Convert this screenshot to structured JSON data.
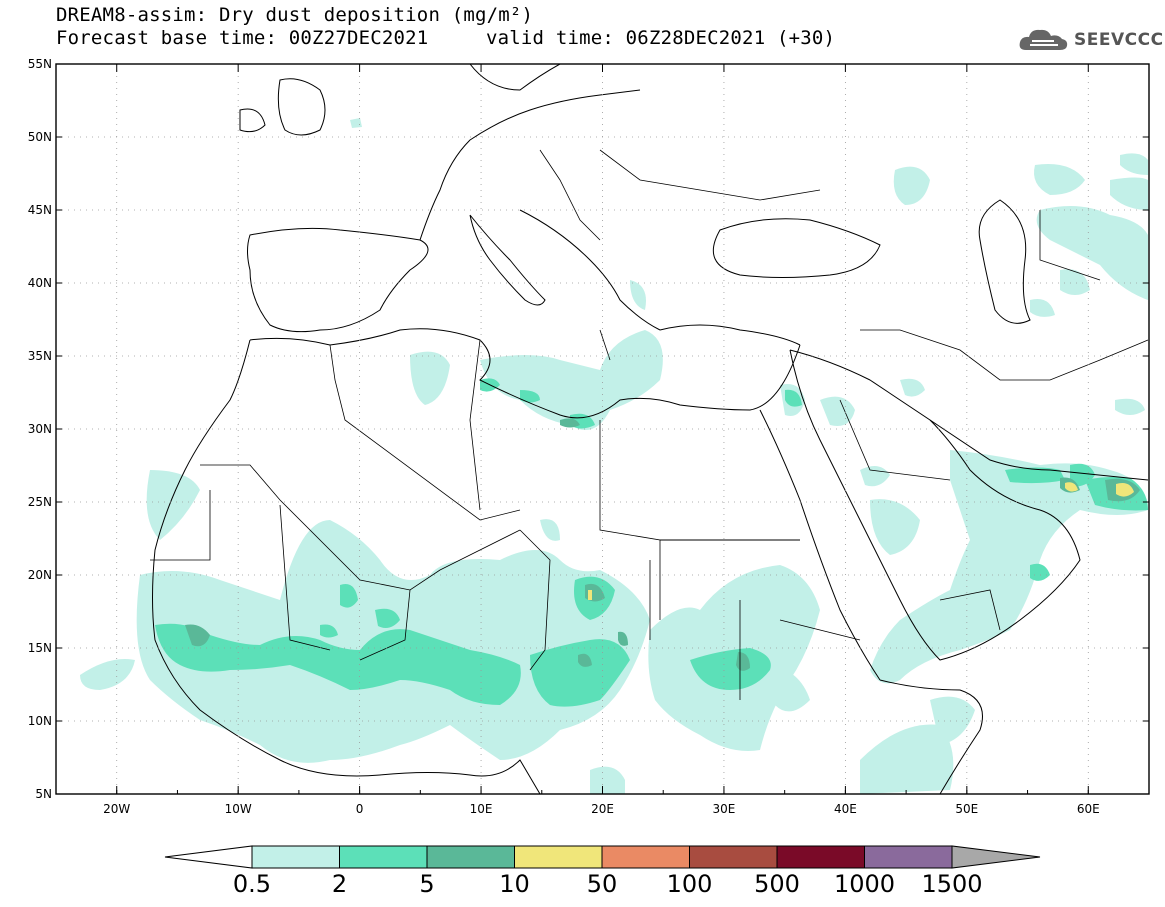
{
  "title": {
    "line1": "DREAM8-assim: Dry dust deposition (mg/m²)",
    "line2_left": "Forecast base time: 00Z27DEC2021",
    "line2_right": "valid time: 06Z28DEC2021 (+30)"
  },
  "logo": {
    "icon": "cloud-logo-icon",
    "text": "SEEVCCC"
  },
  "map": {
    "lon_range": [
      -25,
      65
    ],
    "lat_range": [
      5,
      55
    ],
    "lat_labels": [
      "5N",
      "10N",
      "15N",
      "20N",
      "25N",
      "30N",
      "35N",
      "40N",
      "45N",
      "50N",
      "55N"
    ],
    "lon_labels": [
      "20W",
      "10W",
      "0",
      "10E",
      "20E",
      "30E",
      "40E",
      "50E",
      "60E"
    ],
    "grid": "dotted"
  },
  "colorbar": {
    "levels": [
      "0.5",
      "2",
      "5",
      "10",
      "50",
      "100",
      "500",
      "1000",
      "1500"
    ],
    "colors": [
      "#c2f0e8",
      "#5ce0b8",
      "#5ab898",
      "#f0e67a",
      "#ea8a64",
      "#a84c40",
      "#7a0a28",
      "#8a6a9c"
    ],
    "under_color": "#ffffff",
    "over_color": "#a8a8a8"
  },
  "dust_colors": {
    "light": "#c2f0e8",
    "medium": "#5ce0b8",
    "strong": "#5ab898",
    "high": "#f0e67a"
  }
}
